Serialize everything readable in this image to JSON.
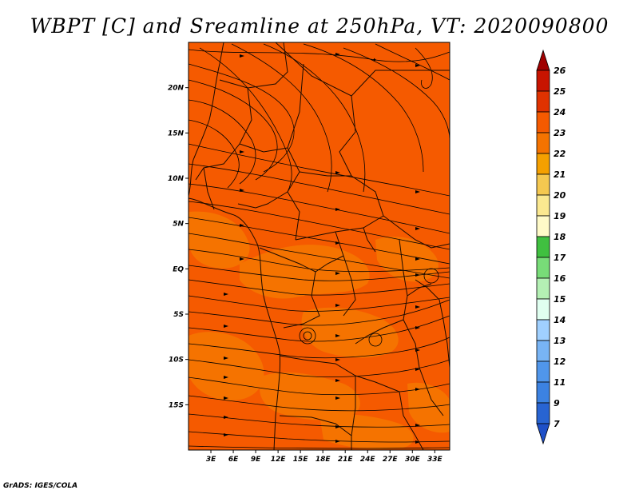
{
  "title": "WBPT [C] and Sreamline at 250hPa, VT: 2020090800",
  "credit": "GrADS: IGES/COLA",
  "map": {
    "lon_range": [
      0,
      35
    ],
    "lat_range": [
      -20,
      25
    ],
    "lat_ticks": [
      {
        "value": 20,
        "label": "20N"
      },
      {
        "value": 15,
        "label": "15N"
      },
      {
        "value": 10,
        "label": "10N"
      },
      {
        "value": 5,
        "label": "5N"
      },
      {
        "value": 0,
        "label": "EQ"
      },
      {
        "value": -5,
        "label": "5S"
      },
      {
        "value": -10,
        "label": "10S"
      },
      {
        "value": -15,
        "label": "15S"
      }
    ],
    "lon_ticks": [
      {
        "value": 3,
        "label": "3E"
      },
      {
        "value": 6,
        "label": "6E"
      },
      {
        "value": 9,
        "label": "9E"
      },
      {
        "value": 12,
        "label": "12E"
      },
      {
        "value": 15,
        "label": "15E"
      },
      {
        "value": 18,
        "label": "18E"
      },
      {
        "value": 21,
        "label": "21E"
      },
      {
        "value": 24,
        "label": "24E"
      },
      {
        "value": 27,
        "label": "27E"
      },
      {
        "value": 30,
        "label": "30E"
      },
      {
        "value": 33,
        "label": "33E"
      }
    ],
    "field_colors": {
      "band_23_24": "#f55a00",
      "band_22_23": "#f57300"
    }
  },
  "colorbar": {
    "labels": [
      "26",
      "25",
      "24",
      "23",
      "22",
      "21",
      "20",
      "19",
      "18",
      "17",
      "16",
      "15",
      "14",
      "13",
      "12",
      "11",
      "9",
      "7"
    ],
    "colors": [
      "#a00000",
      "#c81400",
      "#e03200",
      "#f55a00",
      "#f57300",
      "#f5a000",
      "#f5c850",
      "#fbe890",
      "#fffac8",
      "#40c040",
      "#78dc78",
      "#b4f0b4",
      "#e0fff0",
      "#a0d0ff",
      "#78b4f5",
      "#5096eb",
      "#3c82e1",
      "#2864d2",
      "#1e50c8"
    ]
  }
}
